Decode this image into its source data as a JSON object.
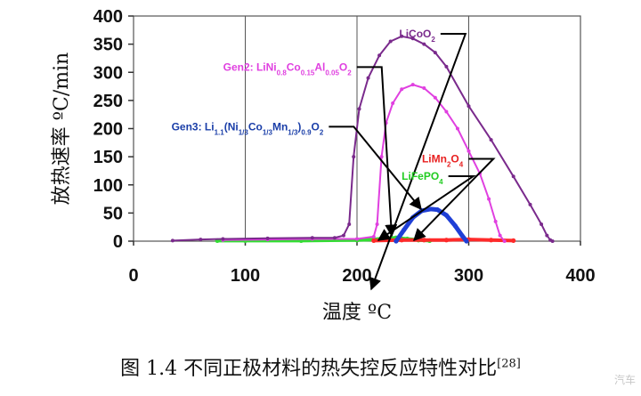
{
  "figure": {
    "caption_main": "图 1.4 不同正极材料的热失控反应特性对比",
    "caption_ref": "[28]",
    "watermark": "汽车"
  },
  "chart_data": {
    "type": "line",
    "xlabel": "温度 ºC",
    "ylabel": "放热速率 ºC/min",
    "xlim": [
      0,
      400
    ],
    "ylim": [
      0,
      400
    ],
    "xticks": [
      0,
      100,
      200,
      300,
      400
    ],
    "yticks": [
      0,
      50,
      100,
      150,
      200,
      250,
      300,
      350,
      400
    ],
    "x_tick_labels": [
      "0",
      "100",
      "200",
      "300",
      "400"
    ],
    "y_tick_labels": [
      "0",
      "50",
      "100",
      "150",
      "200",
      "250",
      "300",
      "350",
      "400"
    ],
    "grid": "vertical",
    "series": [
      {
        "name": "LiCoO2",
        "label_parts": [
          [
            "LiCoO",
            "n"
          ],
          [
            "2",
            "s"
          ]
        ],
        "color": "#7a2a8c",
        "label_color": "#7a2a8c",
        "x": [
          35,
          60,
          80,
          120,
          160,
          180,
          188,
          193,
          197,
          202,
          210,
          220,
          230,
          240,
          250,
          260,
          270,
          280,
          300,
          320,
          340,
          355,
          365,
          370,
          373,
          375
        ],
        "y": [
          1,
          3,
          4,
          5,
          6,
          6,
          10,
          30,
          150,
          235,
          290,
          330,
          355,
          364,
          360,
          350,
          335,
          310,
          240,
          180,
          115,
          65,
          30,
          10,
          2,
          0
        ]
      },
      {
        "name": "Gen2: LiNi0.8Co0.15Al0.05O2",
        "label_parts": [
          [
            "Gen2: LiNi",
            "n"
          ],
          [
            "0.8",
            "s"
          ],
          [
            "Co",
            "n"
          ],
          [
            "0.15",
            "s"
          ],
          [
            "Al",
            "n"
          ],
          [
            "0.05",
            "s"
          ],
          [
            "O",
            "n"
          ],
          [
            "2",
            "s"
          ]
        ],
        "color": "#e040e0",
        "label_color": "#e040e0",
        "x": [
          80,
          120,
          160,
          200,
          215,
          218,
          222,
          226,
          232,
          240,
          250,
          260,
          270,
          280,
          290,
          300,
          310,
          318,
          324,
          328,
          332
        ],
        "y": [
          2,
          3,
          4,
          4,
          8,
          30,
          150,
          210,
          245,
          270,
          278,
          272,
          255,
          230,
          200,
          160,
          120,
          75,
          35,
          10,
          0
        ]
      },
      {
        "name": "Gen3: Li1.1(Ni1/3Co1/3Mn1/3)0.9O2",
        "label_parts": [
          [
            "Gen3: Li",
            "n"
          ],
          [
            "1.1",
            "s"
          ],
          [
            "(Ni",
            "n"
          ],
          [
            "1/3",
            "s"
          ],
          [
            "Co",
            "n"
          ],
          [
            "1/3",
            "s"
          ],
          [
            "Mn",
            "n"
          ],
          [
            "1/3",
            "s"
          ],
          [
            ")",
            "n"
          ],
          [
            "0.9",
            "s"
          ],
          [
            "O",
            "n"
          ],
          [
            "2",
            "s"
          ]
        ],
        "color": "#1f3fd6",
        "label_color": "#1a3ea8",
        "x": [
          235,
          242,
          250,
          258,
          266,
          272,
          280,
          288,
          294,
          298
        ],
        "y": [
          0,
          20,
          42,
          54,
          57,
          56,
          46,
          27,
          10,
          0
        ]
      },
      {
        "name": "LiMn2O4",
        "label_parts": [
          [
            "LiMn",
            "n"
          ],
          [
            "2",
            "s"
          ],
          [
            "O",
            "n"
          ],
          [
            "4",
            "s"
          ]
        ],
        "color": "#ff2a2a",
        "label_color": "#e82020",
        "x": [
          215,
          240,
          260,
          280,
          300,
          320,
          340
        ],
        "y": [
          1,
          2,
          2,
          2,
          3,
          2,
          1
        ]
      },
      {
        "name": "LiFePO4",
        "label_parts": [
          [
            "LiFePO",
            "n"
          ],
          [
            "4",
            "s"
          ]
        ],
        "color": "#33dd33",
        "label_color": "#22cc22",
        "x": [
          75,
          100,
          150,
          200,
          215,
          225,
          235,
          245,
          255,
          265
        ],
        "y": [
          1,
          1,
          1,
          2,
          3,
          5,
          6,
          4,
          2,
          1
        ]
      }
    ],
    "annotations": [
      {
        "series": 0,
        "label_x": 270,
        "label_y": 362,
        "tip_x": 417,
        "tip_y": 325
      },
      {
        "series": 1,
        "label_x": 195,
        "label_y": 303,
        "tip_x": 440,
        "tip_y": 265
      },
      {
        "series": 2,
        "label_x": 170,
        "label_y": 197,
        "tip_x": 473,
        "tip_y": 235
      },
      {
        "series": 3,
        "label_x": 295,
        "label_y": 140,
        "tip_x": 465,
        "tip_y": 270
      },
      {
        "series": 4,
        "label_x": 277,
        "label_y": 109,
        "tip_x": 425,
        "tip_y": 270
      }
    ]
  }
}
